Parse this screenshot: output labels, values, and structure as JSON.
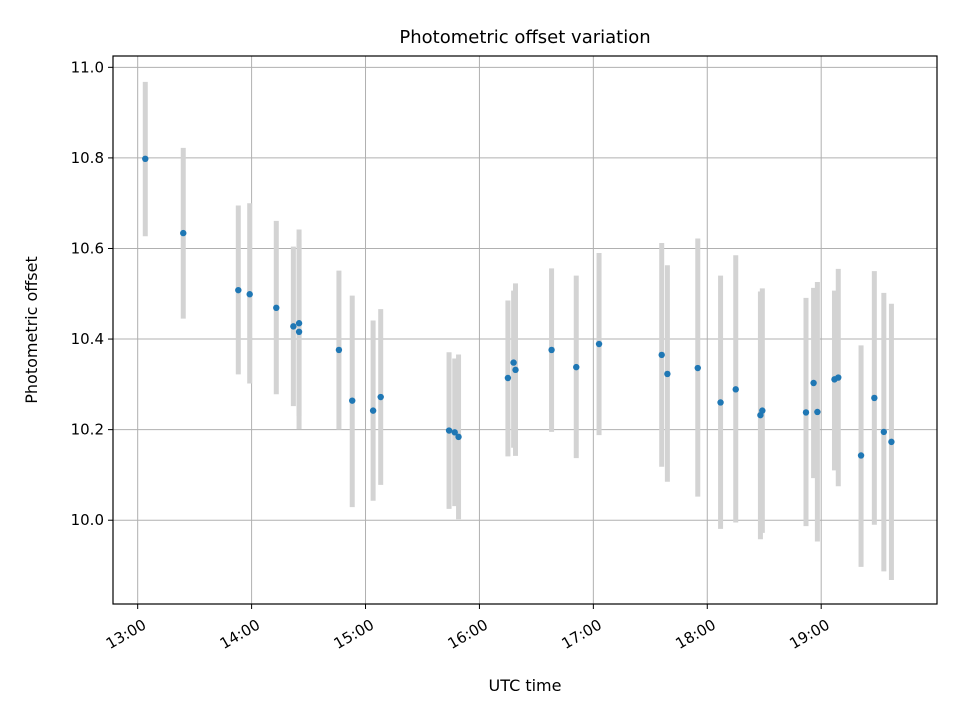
{
  "chart_data": {
    "type": "scatter",
    "title": "Photometric offset variation",
    "xlabel": "UTC time",
    "ylabel": "Photometric offset",
    "x_ticks": [
      "13:00",
      "14:00",
      "15:00",
      "16:00",
      "17:00",
      "18:00",
      "19:00"
    ],
    "y_ticks": [
      "10.0",
      "10.2",
      "10.4",
      "10.6",
      "10.8",
      "11.0"
    ],
    "xlim": [
      "12:47",
      "20:01"
    ],
    "ylim": [
      9.815,
      11.025
    ],
    "grid": true,
    "colors": {
      "points": "#1f77b4",
      "error_bars": "#d3d3d3"
    },
    "series": [
      {
        "points": [
          {
            "x": "13:04",
            "y": 10.798,
            "ylow": 10.627,
            "yhigh": 10.968
          },
          {
            "x": "13:24",
            "y": 10.634,
            "ylow": 10.445,
            "yhigh": 10.822
          },
          {
            "x": "13:53",
            "y": 10.508,
            "ylow": 10.322,
            "yhigh": 10.695
          },
          {
            "x": "13:59",
            "y": 10.499,
            "ylow": 10.302,
            "yhigh": 10.7
          },
          {
            "x": "14:13",
            "y": 10.469,
            "ylow": 10.278,
            "yhigh": 10.661
          },
          {
            "x": "14:22",
            "y": 10.428,
            "ylow": 10.252,
            "yhigh": 10.604
          },
          {
            "x": "14:25",
            "y": 10.435,
            "ylow": 10.23,
            "yhigh": 10.642
          },
          {
            "x": "14:25",
            "y": 10.416,
            "ylow": 10.201,
            "yhigh": 10.62
          },
          {
            "x": "14:46",
            "y": 10.376,
            "ylow": 10.2,
            "yhigh": 10.551
          },
          {
            "x": "14:53",
            "y": 10.264,
            "ylow": 10.029,
            "yhigh": 10.496
          },
          {
            "x": "15:04",
            "y": 10.242,
            "ylow": 10.043,
            "yhigh": 10.441
          },
          {
            "x": "15:08",
            "y": 10.272,
            "ylow": 10.078,
            "yhigh": 10.466
          },
          {
            "x": "15:44",
            "y": 10.198,
            "ylow": 10.025,
            "yhigh": 10.371
          },
          {
            "x": "15:47",
            "y": 10.194,
            "ylow": 10.031,
            "yhigh": 10.357
          },
          {
            "x": "15:49",
            "y": 10.184,
            "ylow": 10.002,
            "yhigh": 10.366
          },
          {
            "x": "16:15",
            "y": 10.314,
            "ylow": 10.141,
            "yhigh": 10.485
          },
          {
            "x": "16:18",
            "y": 10.348,
            "ylow": 10.16,
            "yhigh": 10.507
          },
          {
            "x": "16:19",
            "y": 10.332,
            "ylow": 10.142,
            "yhigh": 10.523
          },
          {
            "x": "16:38",
            "y": 10.376,
            "ylow": 10.195,
            "yhigh": 10.556
          },
          {
            "x": "16:51",
            "y": 10.338,
            "ylow": 10.137,
            "yhigh": 10.54
          },
          {
            "x": "17:03",
            "y": 10.389,
            "ylow": 10.188,
            "yhigh": 10.59
          },
          {
            "x": "17:36",
            "y": 10.365,
            "ylow": 10.118,
            "yhigh": 10.612
          },
          {
            "x": "17:39",
            "y": 10.323,
            "ylow": 10.085,
            "yhigh": 10.563
          },
          {
            "x": "17:55",
            "y": 10.336,
            "ylow": 10.052,
            "yhigh": 10.622
          },
          {
            "x": "18:07",
            "y": 10.26,
            "ylow": 9.981,
            "yhigh": 10.54
          },
          {
            "x": "18:15",
            "y": 10.289,
            "ylow": 9.995,
            "yhigh": 10.585
          },
          {
            "x": "18:28",
            "y": 10.232,
            "ylow": 9.958,
            "yhigh": 10.505
          },
          {
            "x": "18:29",
            "y": 10.242,
            "ylow": 9.972,
            "yhigh": 10.512
          },
          {
            "x": "18:52",
            "y": 10.238,
            "ylow": 9.987,
            "yhigh": 10.491
          },
          {
            "x": "18:56",
            "y": 10.303,
            "ylow": 10.093,
            "yhigh": 10.513
          },
          {
            "x": "18:58",
            "y": 10.239,
            "ylow": 9.953,
            "yhigh": 10.526
          },
          {
            "x": "19:07",
            "y": 10.311,
            "ylow": 10.11,
            "yhigh": 10.507
          },
          {
            "x": "19:09",
            "y": 10.315,
            "ylow": 10.075,
            "yhigh": 10.555
          },
          {
            "x": "19:21",
            "y": 10.143,
            "ylow": 9.897,
            "yhigh": 10.386
          },
          {
            "x": "19:28",
            "y": 10.27,
            "ylow": 9.99,
            "yhigh": 10.55
          },
          {
            "x": "19:33",
            "y": 10.195,
            "ylow": 9.887,
            "yhigh": 10.502
          },
          {
            "x": "19:37",
            "y": 10.173,
            "ylow": 9.868,
            "yhigh": 10.478
          }
        ]
      }
    ]
  }
}
